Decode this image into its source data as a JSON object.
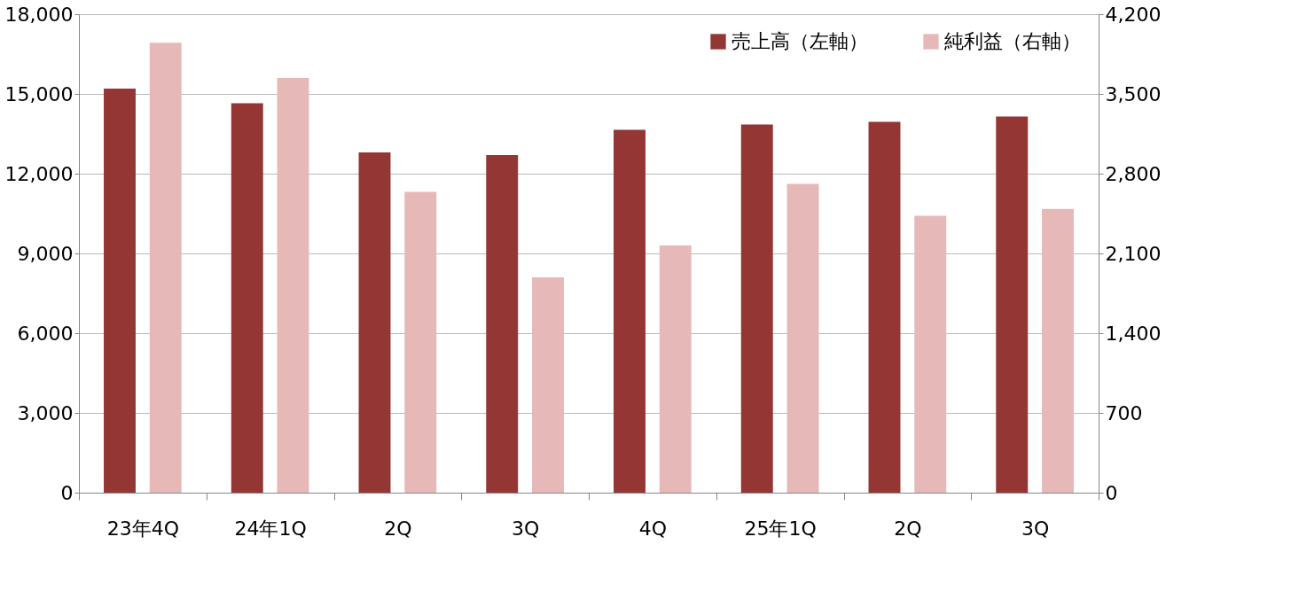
{
  "chart_data": {
    "type": "bar",
    "categories": [
      "23年4Q",
      "24年1Q",
      "2Q",
      "3Q",
      "4Q",
      "25年1Q",
      "2Q",
      "3Q"
    ],
    "series": [
      {
        "name": "売上高（左軸）",
        "color": "#943634",
        "values": [
          15200,
          14650,
          12800,
          12700,
          13650,
          13850,
          13950,
          14150
        ]
      },
      {
        "name": "純利益（右軸）",
        "color": "#e6b9b8",
        "axis": "y2",
        "values": [
          3950,
          3640,
          2640,
          1890,
          2170,
          2710,
          2430,
          2490
        ]
      }
    ],
    "ylim": [
      0,
      18000
    ],
    "yticks": [
      0,
      {
        "value": 3000,
        "label": "3,000"
      },
      {
        "value": 6000,
        "label": "6,000"
      },
      {
        "value": 9000,
        "label": "9,000"
      },
      {
        "value": 12000,
        "label": "12,000"
      },
      {
        "value": 15000,
        "label": "15,000"
      },
      {
        "value": 18000,
        "label": "18,000"
      }
    ],
    "y2lim": [
      0,
      4200
    ],
    "y2ticks": [
      0,
      700,
      {
        "value": 1400,
        "label": "1,400"
      },
      {
        "value": 2100,
        "label": "2,100"
      },
      {
        "value": 2800,
        "label": "2,800"
      },
      {
        "value": 3500,
        "label": "3,500"
      },
      {
        "value": 4200,
        "label": "4,200"
      }
    ],
    "grid": "y",
    "legend": "top right"
  }
}
